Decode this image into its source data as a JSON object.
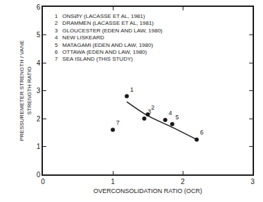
{
  "chart_data": {
    "type": "scatter",
    "xlabel": "OVERCONSOLIDATION RATIO (OCR)",
    "ylabel": [
      "PRESSUREMETER STRENGTH / VANE",
      "STRENGTH RATIO"
    ],
    "xlim": [
      0,
      3
    ],
    "xticks": [
      0,
      1,
      2,
      3
    ],
    "ylim": [
      0,
      6
    ],
    "yticks": [
      0,
      1,
      2,
      3,
      4,
      5,
      6
    ],
    "grid": false,
    "series": [
      {
        "type": "scatter",
        "marker": "circle",
        "color": "#1a1a1a",
        "x": [
          1.2,
          1.5,
          1.45,
          1.75,
          1.85,
          2.2,
          1.0
        ],
        "values": [
          2.8,
          2.15,
          2.0,
          1.95,
          1.8,
          1.25,
          1.6
        ],
        "point_labels": [
          "1",
          "2",
          "3",
          "4",
          "5",
          "6",
          "7"
        ]
      },
      {
        "type": "line",
        "line_style": "solid",
        "color": "#1a1a1a",
        "x": [
          1.2,
          1.5,
          1.8,
          2.2
        ],
        "values": [
          2.6,
          2.1,
          1.75,
          1.25
        ]
      }
    ],
    "annotations": [
      "1   ONSØY (LACASSE ET AL, 1981)",
      "2   DRAMMEN (LACASSE ET AL, 1981)",
      "3   GLOUCESTER (EDEN AND LAW, 1980)",
      "4   NEW LISKEARD",
      "5   MATAGAMI (EDEN AND LAW, 1980)",
      "6   OTTAWA (EDEN AND LAW, 1980)",
      "7   SEA ISLAND (THIS STUDY)"
    ]
  }
}
